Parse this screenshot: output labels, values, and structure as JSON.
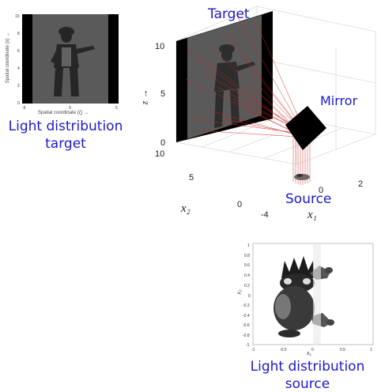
{
  "top_left_panel": {
    "y_axis_label": "Spatial coordinate (s) →",
    "x_axis_label": "Spatial coordinate (ζ) →",
    "x_ticks": [
      "-5",
      "0",
      "5"
    ],
    "y_ticks": [
      "0",
      "2",
      "4",
      "6",
      "8",
      "10"
    ],
    "caption_line1": "Light distribution",
    "caption_line2": "target"
  },
  "scene": {
    "target_label": "Target",
    "mirror_label": "Mirror",
    "source_label": "Source",
    "z_axis_label": "z →",
    "z_ticks": [
      "0",
      "5",
      "10"
    ],
    "x2_ticks": [
      "10",
      "5",
      "0"
    ],
    "x1_ticks": [
      "-4",
      "0",
      "2"
    ],
    "x2_label": "x₂",
    "x1_label": "x₁"
  },
  "bottom_panel": {
    "y_ticks": [
      "1",
      "0.8",
      "0.6",
      "0.4",
      "0.2",
      "0",
      "-0.2",
      "-0.4",
      "-0.6",
      "-0.8",
      "-1"
    ],
    "x_ticks": [
      "-1",
      "-0.5",
      "0",
      "0.5",
      "1"
    ],
    "y_axis_label": "x₂",
    "x_axis_label": "x₁",
    "caption_line1": "Light distribution",
    "caption_line2": "source"
  },
  "colors": {
    "caption_blue": "#1a1acc",
    "ray_red": "#d42020",
    "image_gray": "#5a5a5a",
    "frame_black": "#000000"
  }
}
